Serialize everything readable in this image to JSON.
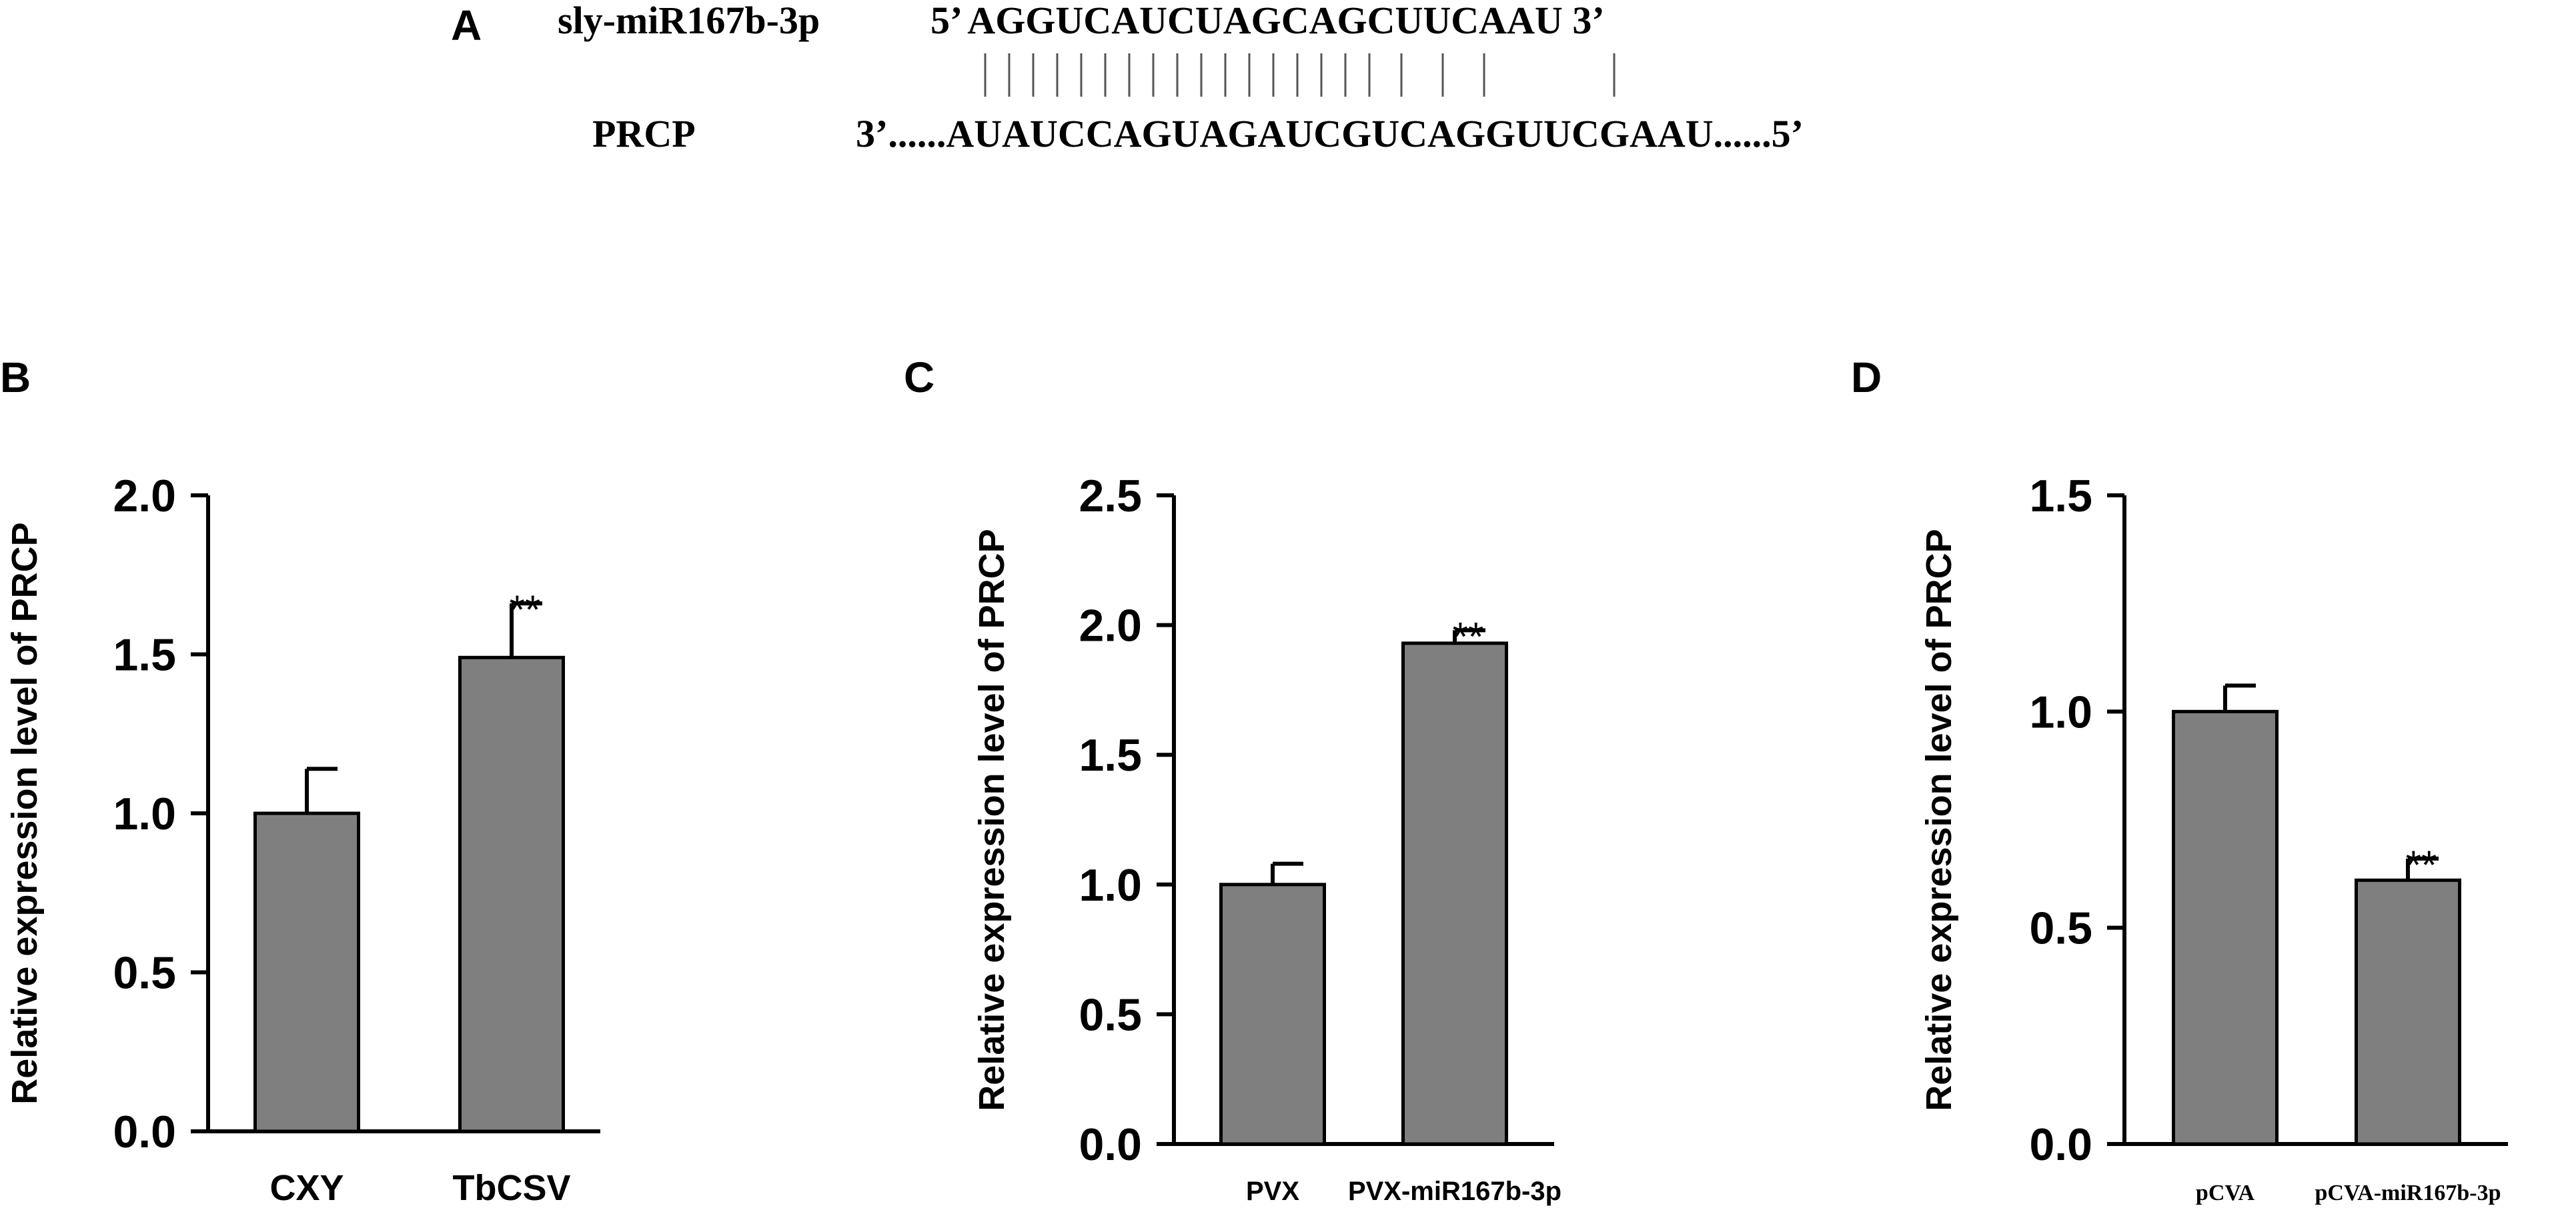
{
  "panel_a": {
    "label": "A",
    "mirna_name": "sly-miR167b-3p",
    "mirna_seq": "5’ AGGUCAUCUAGCAGCUUCAAU 3’",
    "target_name": "PRCP",
    "target_seq": "3’......AUAUCCAGUAGAUCGUCAGGUUCGAAU......5’",
    "pairing_bars": "| | | | | | | | | | | |        |"
  },
  "chart_data": [
    {
      "panel": "B",
      "type": "bar",
      "categories": [
        "CXY",
        "TbCSV"
      ],
      "values": [
        1.0,
        1.49
      ],
      "errors": [
        0.14,
        0.17
      ],
      "significance": [
        "",
        "**"
      ],
      "ylabel": "Relative expression level of PRCP",
      "ylim": [
        0,
        2.0
      ],
      "yticks": [
        "0.0",
        "0.5",
        "1.0",
        "1.5",
        "2.0"
      ],
      "bar_color": "#7f7f7f"
    },
    {
      "panel": "C",
      "type": "bar",
      "categories": [
        "PVX",
        "PVX-miR167b-3p"
      ],
      "values": [
        1.0,
        1.93
      ],
      "errors": [
        0.08,
        0.05
      ],
      "significance": [
        "",
        "**"
      ],
      "ylabel": "Relative expression level of PRCP",
      "ylim": [
        0,
        2.5
      ],
      "yticks": [
        "0.0",
        "0.5",
        "1.0",
        "1.5",
        "2.0",
        "2.5"
      ],
      "bar_color": "#7f7f7f"
    },
    {
      "panel": "D",
      "type": "bar",
      "categories": [
        "pCVA",
        "pCVA-miR167b-3p"
      ],
      "values": [
        1.0,
        0.61
      ],
      "errors": [
        0.06,
        0.05
      ],
      "significance": [
        "",
        "**"
      ],
      "ylabel": "Relative expression level of PRCP",
      "ylim": [
        0,
        1.5
      ],
      "yticks": [
        "0.0",
        "0.5",
        "1.0",
        "1.5"
      ],
      "bar_color": "#7f7f7f"
    }
  ]
}
